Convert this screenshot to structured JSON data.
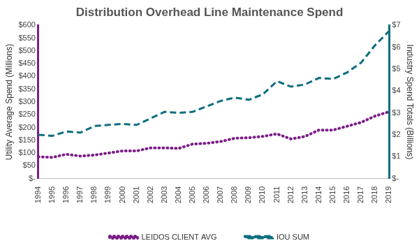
{
  "chart_data": {
    "type": "line",
    "title": "Distribution Overhead Line Maintenance Spend",
    "categories": [
      "1994",
      "1995",
      "1996",
      "1997",
      "1998",
      "1999",
      "2000",
      "2001",
      "2002",
      "2003",
      "2004",
      "2005",
      "2006",
      "2007",
      "2008",
      "2009",
      "2010",
      "2011",
      "2012",
      "2013",
      "2014",
      "2015",
      "2016",
      "2017",
      "2018",
      "2019"
    ],
    "series": [
      {
        "name": "LEIDOS CLIENT AVG",
        "color": "#7a1f86",
        "line_style": "dotted",
        "marker": "none",
        "axis": "y",
        "values": [
          85,
          83,
          95,
          88,
          92,
          100,
          108,
          108,
          120,
          120,
          118,
          135,
          138,
          145,
          158,
          160,
          165,
          175,
          155,
          165,
          190,
          190,
          205,
          220,
          245,
          262
        ]
      },
      {
        "name": "IOU SUM",
        "color": "#0e6e7e",
        "line_style": "dashed",
        "marker": "none",
        "axis": "y2",
        "values": [
          2.0,
          1.95,
          2.15,
          2.1,
          2.4,
          2.45,
          2.5,
          2.45,
          2.75,
          3.05,
          3.0,
          3.05,
          3.3,
          3.55,
          3.7,
          3.6,
          3.85,
          4.45,
          4.2,
          4.3,
          4.6,
          4.55,
          4.85,
          5.3,
          6.1,
          6.75
        ]
      }
    ],
    "y_label": "Utility Average Spend (Millions)",
    "y2_label": "Industry Spend Totals (Billions)",
    "ylim": [
      0,
      600
    ],
    "yticks": [
      {
        "value": 0,
        "label": "$-"
      },
      {
        "value": 50,
        "label": "$50"
      },
      {
        "value": 100,
        "label": "$100"
      },
      {
        "value": 150,
        "label": "$150"
      },
      {
        "value": 200,
        "label": "$200"
      },
      {
        "value": 250,
        "label": "$250"
      },
      {
        "value": 300,
        "label": "$300"
      },
      {
        "value": 350,
        "label": "$350"
      },
      {
        "value": 400,
        "label": "$400"
      },
      {
        "value": 450,
        "label": "$450"
      },
      {
        "value": 500,
        "label": "$500"
      },
      {
        "value": 550,
        "label": "$550"
      },
      {
        "value": 600,
        "label": "$600"
      }
    ],
    "y2lim": [
      0,
      7
    ],
    "y2ticks": [
      {
        "value": 0,
        "label": "$-"
      },
      {
        "value": 1,
        "label": "$1"
      },
      {
        "value": 2,
        "label": "$2"
      },
      {
        "value": 3,
        "label": "$3"
      },
      {
        "value": 4,
        "label": "$4"
      },
      {
        "value": 5,
        "label": "$5"
      },
      {
        "value": 6,
        "label": "$6"
      },
      {
        "value": 7,
        "label": "$7"
      }
    ],
    "grid": false,
    "legend": "bottom"
  }
}
